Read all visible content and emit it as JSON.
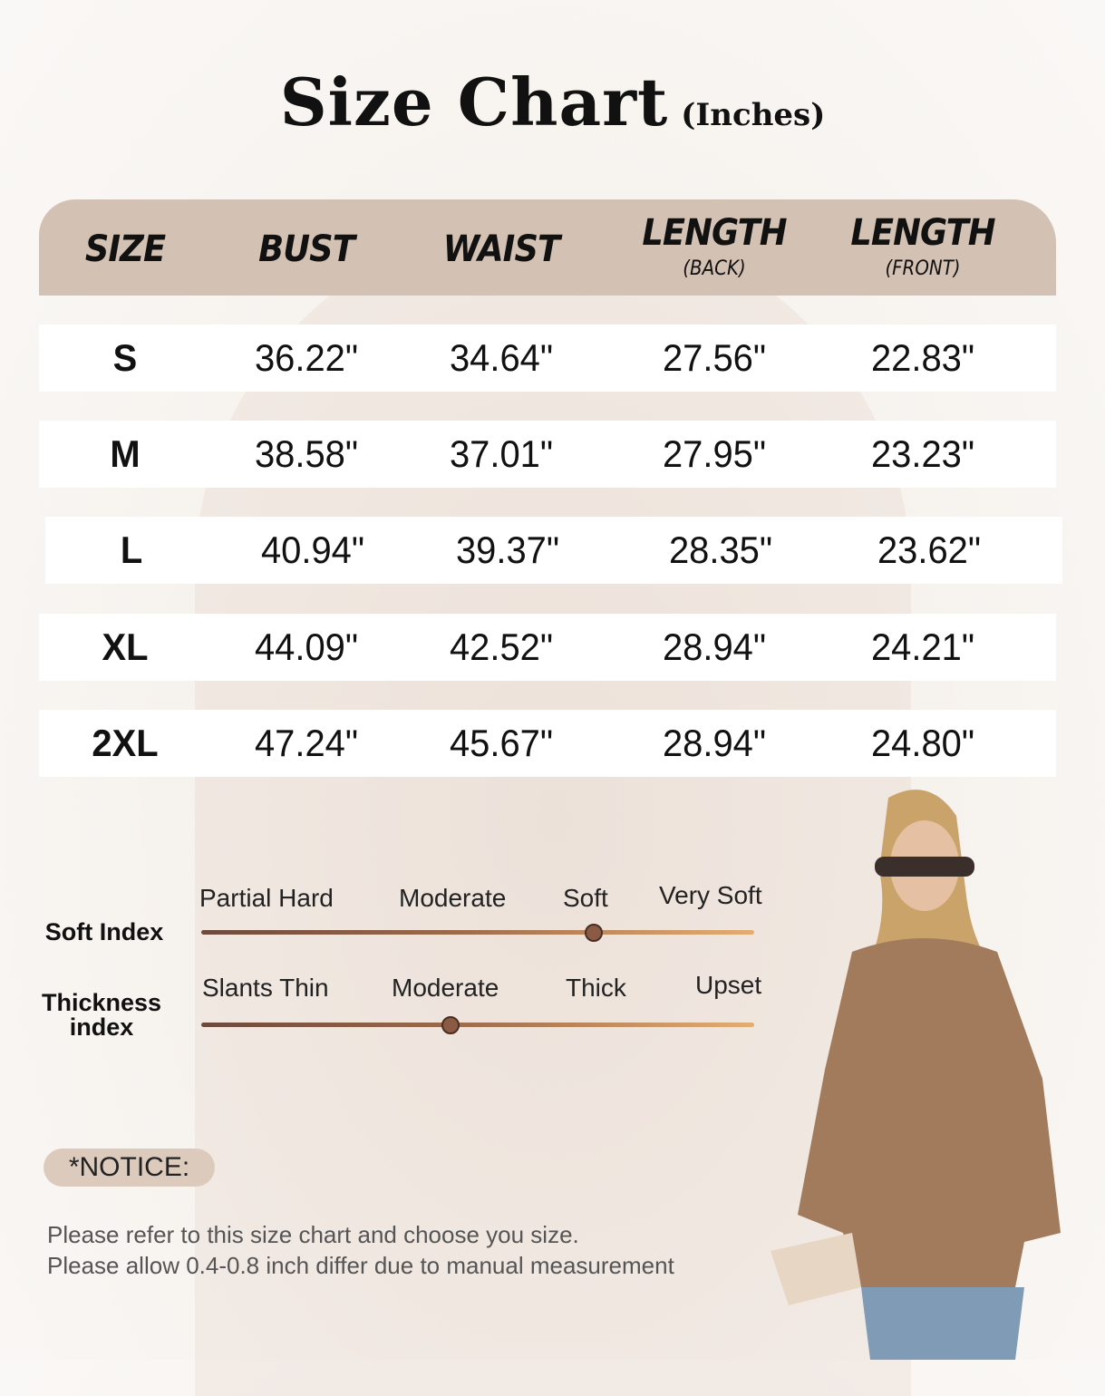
{
  "title": {
    "main": "Size Chart",
    "unit": "(Inches)"
  },
  "table": {
    "headers": [
      {
        "label": "SIZE",
        "sub": ""
      },
      {
        "label": "BUST",
        "sub": ""
      },
      {
        "label": "WAIST",
        "sub": ""
      },
      {
        "label": "LENGTH",
        "sub": "(BACK)"
      },
      {
        "label": "LENGTH",
        "sub": "(FRONT)"
      }
    ],
    "rows": [
      [
        "S",
        "36.22\"",
        "34.64\"",
        "27.56\"",
        "22.83\""
      ],
      [
        "M",
        "38.58\"",
        "37.01\"",
        "27.95\"",
        "23.23\""
      ],
      [
        "L",
        "40.94\"",
        "39.37\"",
        "28.35\"",
        "23.62\""
      ],
      [
        "XL",
        "44.09\"",
        "42.52\"",
        "28.94\"",
        "24.21\""
      ],
      [
        "2XL",
        "47.24\"",
        "45.67\"",
        "28.94\"",
        "24.80\""
      ]
    ],
    "header_color": "#d3c1b3"
  },
  "indices": [
    {
      "label": "Soft Index",
      "options": [
        "Partial Hard",
        "Moderate",
        "Soft",
        "Very Soft"
      ],
      "level": 0.71
    },
    {
      "label": "Thickness index",
      "options": [
        "Slants Thin",
        "Moderate",
        "Thick",
        "Upset"
      ],
      "level": 0.45
    }
  ],
  "notice": {
    "label": "*NOTICE:",
    "lines": [
      "Please refer to this size chart and choose you size.",
      "Please allow 0.4-0.8 inch differ due to manual measurement"
    ]
  },
  "photo": {
    "subject": "model-wearing-brown-ribbed-sweater"
  }
}
